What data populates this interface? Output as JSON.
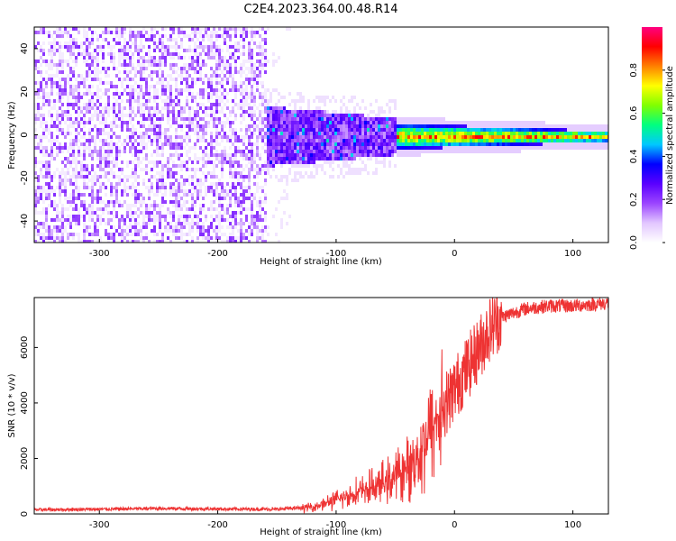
{
  "title": "C2E4.2023.364.00.48.R14",
  "chart_data": [
    {
      "type": "heatmap",
      "xlabel": "Height of straight line (km)",
      "ylabel": "Frequency (Hz)",
      "xlim": [
        -355,
        130
      ],
      "ylim": [
        -50,
        50
      ],
      "xticks": [
        -300,
        -200,
        -100,
        0,
        100
      ],
      "yticks": [
        -40,
        -20,
        0,
        20,
        40
      ],
      "colorbar": {
        "label": "Normalized spectral amplitude",
        "range": [
          0.0,
          1.0
        ],
        "ticks": [
          0.0,
          0.2,
          0.4,
          0.6,
          0.8
        ],
        "colormap": [
          "#ffffff",
          "#e2c6ff",
          "#9b45ff",
          "#5a00ff",
          "#0000ff",
          "#00c8ff",
          "#00ff80",
          "#80ff00",
          "#ffff00",
          "#ff8000",
          "#ff0000",
          "#ff0080"
        ]
      },
      "description_regions": [
        {
          "x_range": [
            -355,
            -160
          ],
          "freq_range": [
            -50,
            50
          ],
          "amplitude": 0.1
        },
        {
          "x_range": [
            -160,
            -50
          ],
          "freq_range": [
            -15,
            15
          ],
          "amplitude": 0.25
        },
        {
          "x_range": [
            -50,
            130
          ],
          "freq_range": [
            -2,
            2
          ],
          "amplitude": 0.7
        }
      ]
    },
    {
      "type": "line",
      "xlabel": "Height of straight line (km)",
      "ylabel": "SNR (10 * v/v)",
      "xlim": [
        -355,
        130
      ],
      "ylim": [
        0,
        7800
      ],
      "xticks": [
        -300,
        -200,
        -100,
        0,
        100
      ],
      "yticks": [
        0,
        2000,
        4000,
        6000
      ],
      "color": "#ee3333",
      "series": [
        {
          "x": [
            -355,
            -300,
            -250,
            -200,
            -150,
            -120,
            -100,
            -80,
            -60,
            -40,
            -30,
            -20,
            -10,
            0,
            10,
            20,
            30,
            40,
            60,
            80,
            100,
            130
          ],
          "y": [
            150,
            170,
            200,
            180,
            170,
            250,
            500,
            800,
            1100,
            1600,
            2200,
            3000,
            3800,
            4500,
            5200,
            5900,
            6700,
            7100,
            7400,
            7500,
            7500,
            7600
          ]
        }
      ]
    }
  ]
}
